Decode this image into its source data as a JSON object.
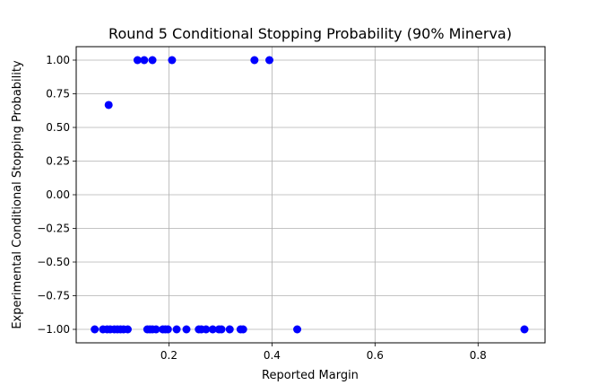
{
  "chart_data": {
    "type": "scatter",
    "title": "Round 5 Conditional Stopping Probability (90% Minerva)",
    "xlabel": "Reported Margin",
    "ylabel": "Experimental Conditional Stopping Probability",
    "xlim": [
      0.02,
      0.93
    ],
    "ylim": [
      -1.1,
      1.1
    ],
    "xticks": [
      0.2,
      0.4,
      0.6,
      0.8
    ],
    "xtick_labels": [
      "0.2",
      "0.4",
      "0.6",
      "0.8"
    ],
    "yticks": [
      1.0,
      0.75,
      0.5,
      0.25,
      0.0,
      -0.25,
      -0.5,
      -0.75,
      -1.0
    ],
    "ytick_labels": [
      "1.00",
      "0.75",
      "0.50",
      "0.25",
      "0.00",
      "−0.25",
      "−0.50",
      "−0.75",
      "−1.00"
    ],
    "grid": true,
    "marker_color": "#0000ff",
    "points": [
      {
        "x": 0.139,
        "y": 1.0
      },
      {
        "x": 0.152,
        "y": 1.0
      },
      {
        "x": 0.168,
        "y": 1.0
      },
      {
        "x": 0.206,
        "y": 1.0
      },
      {
        "x": 0.366,
        "y": 1.0
      },
      {
        "x": 0.395,
        "y": 1.0
      },
      {
        "x": 0.083,
        "y": 0.667
      },
      {
        "x": 0.056,
        "y": -1.0
      },
      {
        "x": 0.072,
        "y": -1.0
      },
      {
        "x": 0.08,
        "y": -1.0
      },
      {
        "x": 0.086,
        "y": -1.0
      },
      {
        "x": 0.094,
        "y": -1.0
      },
      {
        "x": 0.1,
        "y": -1.0
      },
      {
        "x": 0.106,
        "y": -1.0
      },
      {
        "x": 0.112,
        "y": -1.0
      },
      {
        "x": 0.12,
        "y": -1.0
      },
      {
        "x": 0.158,
        "y": -1.0
      },
      {
        "x": 0.163,
        "y": -1.0
      },
      {
        "x": 0.168,
        "y": -1.0
      },
      {
        "x": 0.175,
        "y": -1.0
      },
      {
        "x": 0.188,
        "y": -1.0
      },
      {
        "x": 0.193,
        "y": -1.0
      },
      {
        "x": 0.198,
        "y": -1.0
      },
      {
        "x": 0.215,
        "y": -1.0
      },
      {
        "x": 0.234,
        "y": -1.0
      },
      {
        "x": 0.258,
        "y": -1.0
      },
      {
        "x": 0.263,
        "y": -1.0
      },
      {
        "x": 0.272,
        "y": -1.0
      },
      {
        "x": 0.285,
        "y": -1.0
      },
      {
        "x": 0.297,
        "y": -1.0
      },
      {
        "x": 0.302,
        "y": -1.0
      },
      {
        "x": 0.318,
        "y": -1.0
      },
      {
        "x": 0.339,
        "y": -1.0
      },
      {
        "x": 0.344,
        "y": -1.0
      },
      {
        "x": 0.449,
        "y": -1.0
      },
      {
        "x": 0.89,
        "y": -1.0
      }
    ]
  }
}
